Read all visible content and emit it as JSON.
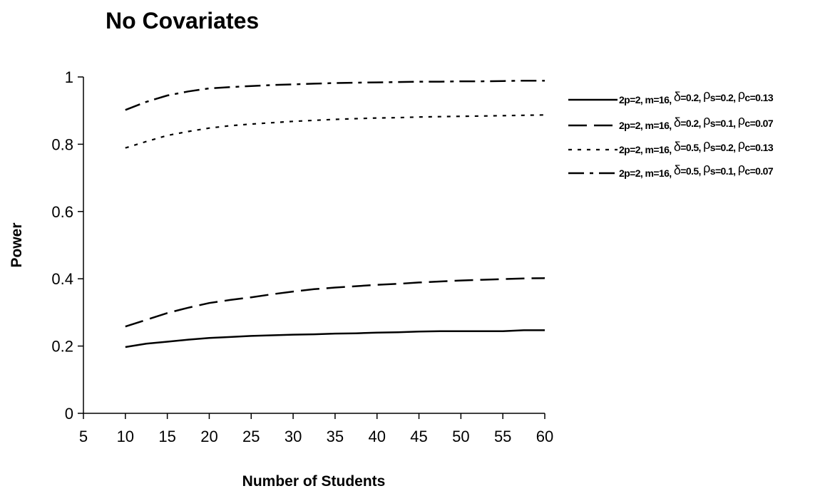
{
  "chart_data": {
    "type": "line",
    "title": "No Covariates",
    "xlabel": "Number of Students",
    "ylabel": "Power",
    "xlim": [
      5,
      60
    ],
    "ylim": [
      0,
      1
    ],
    "x_ticks": [
      "5",
      "10",
      "15",
      "20",
      "25",
      "30",
      "35",
      "40",
      "45",
      "50",
      "55",
      "60"
    ],
    "y_ticks": [
      "0",
      "0.2",
      "0.4",
      "0.6",
      "0.8",
      "1"
    ],
    "grid": false,
    "legend_position": "top-right",
    "x": [
      10,
      12.5,
      15,
      17.5,
      20,
      22.5,
      25,
      27.5,
      30,
      32.5,
      35,
      37.5,
      40,
      42.5,
      45,
      47.5,
      50,
      52.5,
      55,
      57.5,
      60
    ],
    "series": [
      {
        "name": "2p=2, m=16, δ=0.2, ρs=0.2, ρc=0.13",
        "legend": {
          "pre": "2p=2, m=16, ",
          "d_sym": "δ",
          "d_val": "=0.2, ",
          "s_sym": "ρ",
          "s_sub": "s",
          "s_val": "=0.2, ",
          "c_sym": "ρ",
          "c_sub": "c",
          "c_val": "=0.13"
        },
        "dash": "solid",
        "values": [
          0.197,
          0.207,
          0.213,
          0.219,
          0.224,
          0.227,
          0.23,
          0.232,
          0.234,
          0.235,
          0.237,
          0.238,
          0.24,
          0.241,
          0.243,
          0.244,
          0.244,
          0.244,
          0.244,
          0.247,
          0.247
        ]
      },
      {
        "name": "2p=2, m=16, δ=0.2, ρs=0.1, ρc=0.07",
        "legend": {
          "pre": "2p=2, m=16, ",
          "d_sym": "δ",
          "d_val": "=0.2, ",
          "s_sym": "ρ",
          "s_sub": "s",
          "s_val": "=0.1, ",
          "c_sym": "ρ",
          "c_sub": "c",
          "c_val": "=0.07"
        },
        "dash": "long-dash",
        "values": [
          0.258,
          0.278,
          0.298,
          0.314,
          0.328,
          0.337,
          0.345,
          0.354,
          0.362,
          0.369,
          0.374,
          0.378,
          0.382,
          0.385,
          0.389,
          0.392,
          0.395,
          0.397,
          0.399,
          0.401,
          0.402
        ]
      },
      {
        "name": "2p=2, m=16, δ=0.5, ρs=0.2, ρc=0.13",
        "legend": {
          "pre": "2p=2, m=16, ",
          "d_sym": "δ",
          "d_val": "=0.5, ",
          "s_sym": "ρ",
          "s_sub": "s",
          "s_val": "=0.2, ",
          "c_sym": "ρ",
          "c_sub": "c",
          "c_val": "=0.13"
        },
        "dash": "dotted",
        "values": [
          0.789,
          0.808,
          0.826,
          0.838,
          0.848,
          0.855,
          0.86,
          0.864,
          0.868,
          0.871,
          0.874,
          0.876,
          0.878,
          0.879,
          0.881,
          0.882,
          0.883,
          0.884,
          0.885,
          0.886,
          0.887
        ]
      },
      {
        "name": "2p=2, m=16, δ=0.5, ρs=0.1, ρc=0.07",
        "legend": {
          "pre": "2p=2, m=16, ",
          "d_sym": "δ",
          "d_val": "=0.5, ",
          "s_sym": "ρ",
          "s_sub": "s",
          "s_val": "=0.1, ",
          "c_sym": "ρ",
          "c_sub": "c",
          "c_val": "=0.07"
        },
        "dash": "dash-dot",
        "values": [
          0.902,
          0.926,
          0.945,
          0.957,
          0.966,
          0.97,
          0.973,
          0.976,
          0.978,
          0.98,
          0.982,
          0.983,
          0.984,
          0.985,
          0.986,
          0.986,
          0.987,
          0.987,
          0.988,
          0.989,
          0.989
        ]
      }
    ]
  }
}
